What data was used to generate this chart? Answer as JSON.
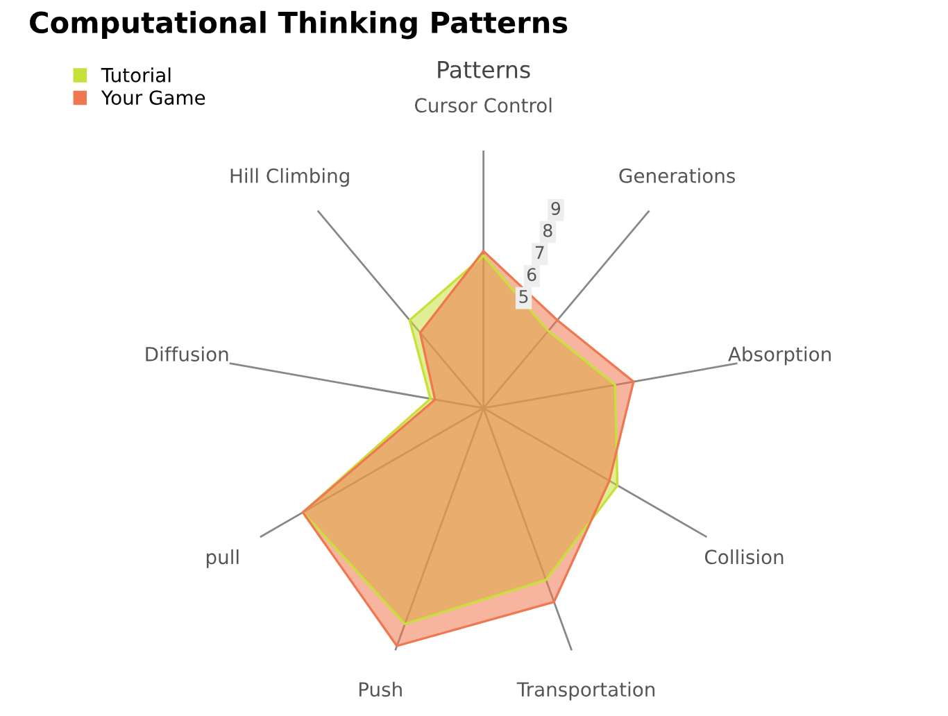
{
  "chart_data": {
    "type": "radar",
    "title": "Computational Thinking Patterns",
    "subtitle": "Patterns",
    "categories": [
      "Cursor Control",
      "Generations",
      "Absorption",
      "Collision",
      "Transportation",
      "Push",
      "pull",
      "Diffusion",
      "Hill Climbing"
    ],
    "series": [
      {
        "name": "Tutorial",
        "color": "#c8e03a",
        "values": [
          6.5,
          4.3,
          5.7,
          6.6,
          7.8,
          9.8,
          8.9,
          2.3,
          4.9
        ]
      },
      {
        "name": "Your Game",
        "color": "#f07850",
        "values": [
          6.7,
          4.9,
          6.5,
          6.2,
          8.8,
          10.8,
          8.9,
          2.1,
          4.2
        ]
      }
    ],
    "ylim": [
      0,
      11
    ],
    "yticks": [
      5,
      6,
      7,
      8,
      9
    ],
    "grid": false,
    "legend": "top left"
  }
}
